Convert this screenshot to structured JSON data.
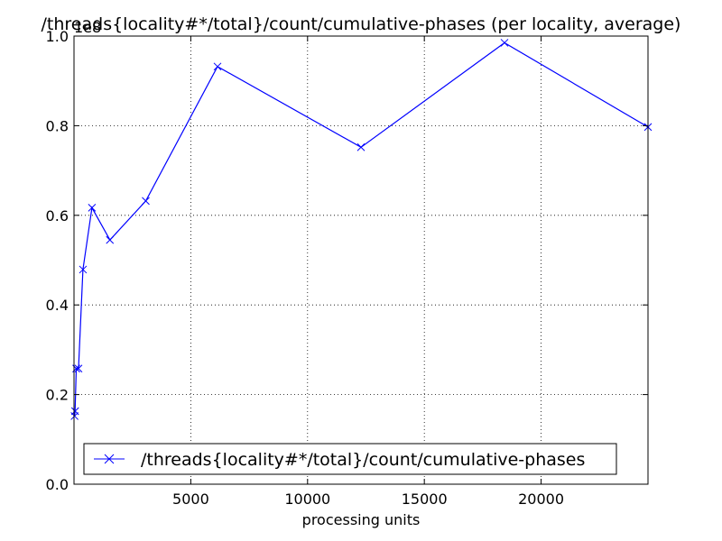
{
  "chart_data": {
    "type": "line",
    "title": "/threads{locality#*/total}/count/cumulative-phases (per locality, average)",
    "xlabel": "processing units",
    "ylabel": "",
    "y_offset_label": "1e8",
    "xlim": [
      0,
      24576
    ],
    "ylim": [
      0,
      1.0
    ],
    "x_ticks": [
      5000,
      10000,
      15000,
      20000
    ],
    "y_ticks": [
      0.0,
      0.2,
      0.4,
      0.6,
      0.8,
      1.0
    ],
    "y_tick_labels": [
      "0.0",
      "0.2",
      "0.4",
      "0.6",
      "0.8",
      "1.0"
    ],
    "grid": true,
    "legend_position": "lower-right",
    "series": [
      {
        "name": "/threads{locality#*/total}/count/cumulative-phases",
        "color": "#0000ff",
        "marker": "x",
        "x": [
          24,
          48,
          96,
          192,
          384,
          768,
          1536,
          3072,
          6144,
          12288,
          18432,
          24576
        ],
        "y": [
          0.152,
          0.163,
          0.258,
          0.258,
          0.479,
          0.617,
          0.545,
          0.632,
          0.932,
          0.752,
          0.985,
          0.797
        ]
      }
    ]
  }
}
